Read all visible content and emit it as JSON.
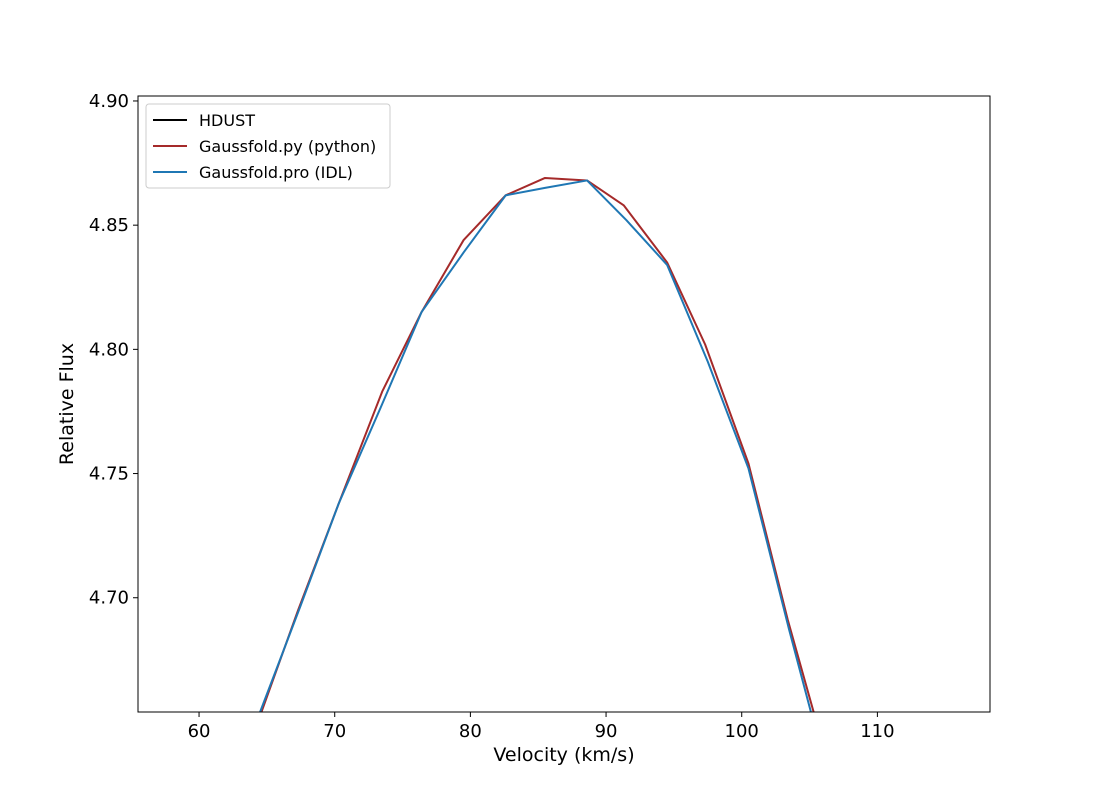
{
  "chart_data": {
    "type": "line",
    "title": "",
    "xlabel": "Velocity (km/s)",
    "ylabel": "Relative Flux",
    "xlim": [
      55.5,
      118.3
    ],
    "ylim": [
      4.654,
      4.902
    ],
    "xticks": [
      60,
      70,
      80,
      90,
      100,
      110
    ],
    "xtick_labels": [
      "60",
      "70",
      "80",
      "90",
      "100",
      "110"
    ],
    "yticks": [
      4.7,
      4.75,
      4.8,
      4.85,
      4.9
    ],
    "ytick_labels": [
      "4.70",
      "4.75",
      "4.80",
      "4.85",
      "4.90"
    ],
    "grid": false,
    "legend_position": "top-left",
    "series": [
      {
        "name": "HDUST",
        "color": "#000000",
        "x": [],
        "y": []
      },
      {
        "name": "Gaussfold.py (python)",
        "color": "#a52a2a",
        "x": [
          64.6,
          67.3,
          70.3,
          73.5,
          76.4,
          79.5,
          82.6,
          85.5,
          88.6,
          91.3,
          94.5,
          97.3,
          100.5,
          103.4,
          105.3
        ],
        "y": [
          4.654,
          4.695,
          4.738,
          4.783,
          4.815,
          4.844,
          4.862,
          4.869,
          4.868,
          4.858,
          4.835,
          4.802,
          4.754,
          4.691,
          4.654
        ]
      },
      {
        "name": "Gaussfold.pro (IDL)",
        "color": "#1f77b4",
        "x": [
          64.5,
          67.5,
          70.3,
          73.5,
          76.4,
          79.5,
          82.6,
          85.5,
          88.6,
          91.5,
          94.5,
          97.5,
          100.5,
          103.5,
          105.1
        ],
        "y": [
          4.654,
          4.697,
          4.738,
          4.778,
          4.815,
          4.839,
          4.862,
          4.865,
          4.868,
          4.852,
          4.834,
          4.795,
          4.752,
          4.687,
          4.654
        ]
      }
    ]
  }
}
